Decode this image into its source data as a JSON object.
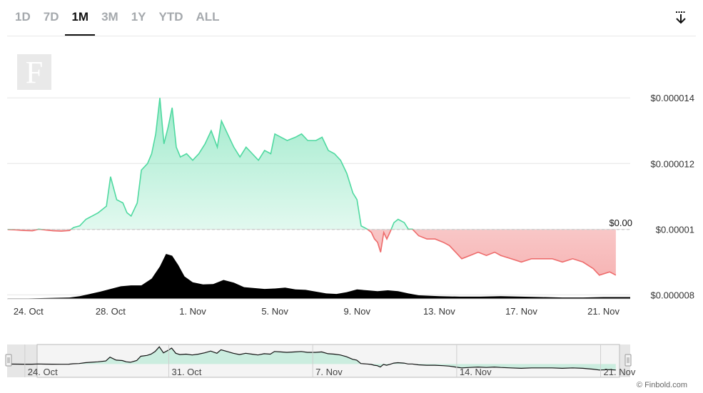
{
  "tabs": [
    "1D",
    "7D",
    "1M",
    "3M",
    "1Y",
    "YTD",
    "ALL"
  ],
  "active_tab": "1M",
  "logo_letter": "F",
  "credit": "© Finbold.com",
  "reference_label": "$0.00",
  "colors": {
    "up": "#4fd9a0",
    "down": "#ee6b6b",
    "volume": "#000000",
    "grid": "#e6e6e6"
  },
  "chart_data": {
    "type": "area",
    "title": "",
    "xlabel": "",
    "ylabel": "",
    "y_ticks": [
      {
        "value": 8e-06,
        "label": "$0.000008"
      },
      {
        "value": 1e-05,
        "label": "$0.00001"
      },
      {
        "value": 1.2e-05,
        "label": "$0.000012"
      },
      {
        "value": 1.4e-05,
        "label": "$0.000014"
      }
    ],
    "ylim": [
      7.9e-06,
      1.42e-05
    ],
    "xlim": [
      0,
      30.3
    ],
    "x_ticks": [
      {
        "day": 1,
        "label": "24. Oct"
      },
      {
        "day": 5,
        "label": "28. Oct"
      },
      {
        "day": 9,
        "label": "1. Nov"
      },
      {
        "day": 13,
        "label": "5. Nov"
      },
      {
        "day": 17,
        "label": "9. Nov"
      },
      {
        "day": 21,
        "label": "13. Nov"
      },
      {
        "day": 25,
        "label": "17. Nov"
      },
      {
        "day": 29,
        "label": "21. Nov"
      }
    ],
    "reference_value": 9.99e-06,
    "price_series": [
      [
        0,
        9.99e-06
      ],
      [
        0.4,
        9.98e-06
      ],
      [
        0.8,
        9.96e-06
      ],
      [
        1.2,
        9.95e-06
      ],
      [
        1.5,
        1e-05
      ],
      [
        1.8,
        9.98e-06
      ],
      [
        2.2,
        9.95e-06
      ],
      [
        2.6,
        9.94e-06
      ],
      [
        3.0,
        9.96e-06
      ],
      [
        3.2,
        1.005e-05
      ],
      [
        3.5,
        1.01e-05
      ],
      [
        3.8,
        1.03e-05
      ],
      [
        4.1,
        1.04e-05
      ],
      [
        4.4,
        1.05e-05
      ],
      [
        4.8,
        1.07e-05
      ],
      [
        5.0,
        1.16e-05
      ],
      [
        5.3,
        1.09e-05
      ],
      [
        5.6,
        1.08e-05
      ],
      [
        5.8,
        1.05e-05
      ],
      [
        6.0,
        1.04e-05
      ],
      [
        6.3,
        1.08e-05
      ],
      [
        6.5,
        1.18e-05
      ],
      [
        6.8,
        1.2e-05
      ],
      [
        7.0,
        1.23e-05
      ],
      [
        7.2,
        1.29e-05
      ],
      [
        7.4,
        1.4e-05
      ],
      [
        7.6,
        1.26e-05
      ],
      [
        7.8,
        1.31e-05
      ],
      [
        8.0,
        1.37e-05
      ],
      [
        8.2,
        1.25e-05
      ],
      [
        8.4,
        1.22e-05
      ],
      [
        8.7,
        1.23e-05
      ],
      [
        9.0,
        1.21e-05
      ],
      [
        9.3,
        1.23e-05
      ],
      [
        9.6,
        1.26e-05
      ],
      [
        9.9,
        1.3e-05
      ],
      [
        10.2,
        1.25e-05
      ],
      [
        10.4,
        1.33e-05
      ],
      [
        10.7,
        1.29e-05
      ],
      [
        11.0,
        1.25e-05
      ],
      [
        11.3,
        1.22e-05
      ],
      [
        11.6,
        1.25e-05
      ],
      [
        11.9,
        1.23e-05
      ],
      [
        12.2,
        1.21e-05
      ],
      [
        12.5,
        1.24e-05
      ],
      [
        12.8,
        1.23e-05
      ],
      [
        13.0,
        1.29e-05
      ],
      [
        13.3,
        1.28e-05
      ],
      [
        13.6,
        1.27e-05
      ],
      [
        14.0,
        1.28e-05
      ],
      [
        14.3,
        1.29e-05
      ],
      [
        14.6,
        1.27e-05
      ],
      [
        15.0,
        1.27e-05
      ],
      [
        15.3,
        1.28e-05
      ],
      [
        15.6,
        1.24e-05
      ],
      [
        15.9,
        1.23e-05
      ],
      [
        16.2,
        1.21e-05
      ],
      [
        16.5,
        1.17e-05
      ],
      [
        16.8,
        1.11e-05
      ],
      [
        17.0,
        1.09e-05
      ],
      [
        17.2,
        1.01e-05
      ],
      [
        17.5,
        1e-05
      ],
      [
        17.7,
        9.9e-06
      ],
      [
        17.85,
        9.7e-06
      ],
      [
        18.0,
        9.6e-06
      ],
      [
        18.15,
        9.3e-06
      ],
      [
        18.3,
        9.9e-06
      ],
      [
        18.45,
        9.7e-06
      ],
      [
        18.6,
        9.9e-06
      ],
      [
        18.8,
        1.02e-05
      ],
      [
        19.0,
        1.03e-05
      ],
      [
        19.3,
        1.02e-05
      ],
      [
        19.5,
        1e-05
      ],
      [
        19.7,
        1e-05
      ],
      [
        20.0,
        9.8e-06
      ],
      [
        20.4,
        9.7e-06
      ],
      [
        20.8,
        9.7e-06
      ],
      [
        21.2,
        9.6e-06
      ],
      [
        21.5,
        9.5e-06
      ],
      [
        21.8,
        9.3e-06
      ],
      [
        22.1,
        9.1e-06
      ],
      [
        22.5,
        9.2e-06
      ],
      [
        22.9,
        9.3e-06
      ],
      [
        23.3,
        9.2e-06
      ],
      [
        23.7,
        9.3e-06
      ],
      [
        24.0,
        9.2e-06
      ],
      [
        24.5,
        9.1e-06
      ],
      [
        25.0,
        9e-06
      ],
      [
        25.5,
        9.1e-06
      ],
      [
        26.0,
        9.1e-06
      ],
      [
        26.5,
        9.1e-06
      ],
      [
        27.0,
        9e-06
      ],
      [
        27.5,
        9.1e-06
      ],
      [
        28.0,
        9e-06
      ],
      [
        28.5,
        8.8e-06
      ],
      [
        28.8,
        8.6e-06
      ],
      [
        29.3,
        8.7e-06
      ],
      [
        29.6,
        8.6e-06
      ]
    ],
    "volume_series": [
      [
        0,
        0.01
      ],
      [
        1,
        0.01
      ],
      [
        2,
        0.02
      ],
      [
        3,
        0.03
      ],
      [
        3.5,
        0.06
      ],
      [
        4,
        0.11
      ],
      [
        4.5,
        0.16
      ],
      [
        5,
        0.22
      ],
      [
        5.5,
        0.28
      ],
      [
        6,
        0.3
      ],
      [
        6.5,
        0.3
      ],
      [
        7,
        0.45
      ],
      [
        7.4,
        0.72
      ],
      [
        7.7,
        1.0
      ],
      [
        8.0,
        0.96
      ],
      [
        8.3,
        0.75
      ],
      [
        8.6,
        0.5
      ],
      [
        9,
        0.37
      ],
      [
        9.5,
        0.32
      ],
      [
        10,
        0.33
      ],
      [
        10.5,
        0.42
      ],
      [
        11,
        0.36
      ],
      [
        11.5,
        0.26
      ],
      [
        12,
        0.24
      ],
      [
        12.5,
        0.22
      ],
      [
        13,
        0.23
      ],
      [
        13.5,
        0.25
      ],
      [
        14,
        0.21
      ],
      [
        14.5,
        0.2
      ],
      [
        15,
        0.16
      ],
      [
        15.5,
        0.12
      ],
      [
        16,
        0.11
      ],
      [
        16.5,
        0.15
      ],
      [
        17,
        0.21
      ],
      [
        17.5,
        0.19
      ],
      [
        18,
        0.17
      ],
      [
        18.5,
        0.19
      ],
      [
        19,
        0.17
      ],
      [
        19.5,
        0.12
      ],
      [
        20,
        0.08
      ],
      [
        21,
        0.06
      ],
      [
        22,
        0.05
      ],
      [
        23,
        0.05
      ],
      [
        24,
        0.06
      ],
      [
        25,
        0.05
      ],
      [
        26,
        0.04
      ],
      [
        27,
        0.03
      ],
      [
        28,
        0.03
      ],
      [
        29,
        0.04
      ],
      [
        30.3,
        0.04
      ]
    ],
    "navigator": {
      "x_ticks": [
        {
          "day": 1,
          "label": "24. Oct"
        },
        {
          "day": 8,
          "label": "31. Oct"
        },
        {
          "day": 15,
          "label": "7. Nov"
        },
        {
          "day": 22,
          "label": "14. Nov"
        },
        {
          "day": 29,
          "label": "21. Nov"
        }
      ]
    }
  }
}
